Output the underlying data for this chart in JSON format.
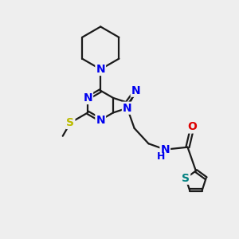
{
  "bg_color": "#eeeeee",
  "bond_color": "#1a1a1a",
  "N_color": "#0000ee",
  "O_color": "#dd0000",
  "S_methyl_color": "#bbbb00",
  "S_thiophene_color": "#008080",
  "line_width": 1.6,
  "font_size": 10,
  "xlim": [
    0,
    10
  ],
  "ylim": [
    0,
    10
  ]
}
